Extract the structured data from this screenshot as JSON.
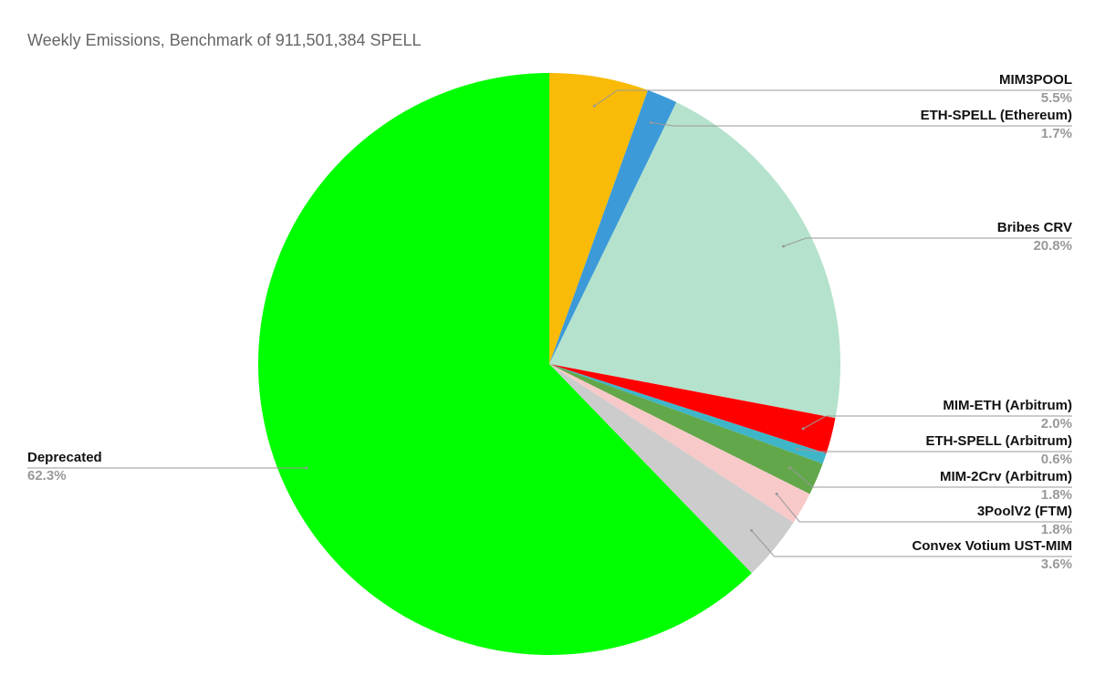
{
  "chart_data": {
    "type": "pie",
    "title": "Weekly Emissions, Benchmark of 911,501,384 SPELL",
    "categories": [
      "MIM3POOL",
      "ETH-SPELL (Ethereum)",
      "Bribes CRV",
      "MIM-ETH (Arbitrum)",
      "ETH-SPELL (Arbitrum)",
      "MIM-2Crv (Arbitrum)",
      "3PoolV2 (FTM)",
      "Convex Votium UST-MIM",
      "Deprecated"
    ],
    "values": [
      5.5,
      1.7,
      20.8,
      2.0,
      0.6,
      1.8,
      1.8,
      3.6,
      62.3
    ],
    "value_labels": [
      "5.5%",
      "1.7%",
      "20.8%",
      "2.0%",
      "0.6%",
      "1.8%",
      "1.8%",
      "3.6%",
      "62.3%"
    ],
    "colors": [
      "#f9bb07",
      "#3c9ad8",
      "#b5e2cc",
      "#ff0000",
      "#3fb5c8",
      "#62a84a",
      "#f7c9c9",
      "#cccccc",
      "#00ff00"
    ]
  }
}
